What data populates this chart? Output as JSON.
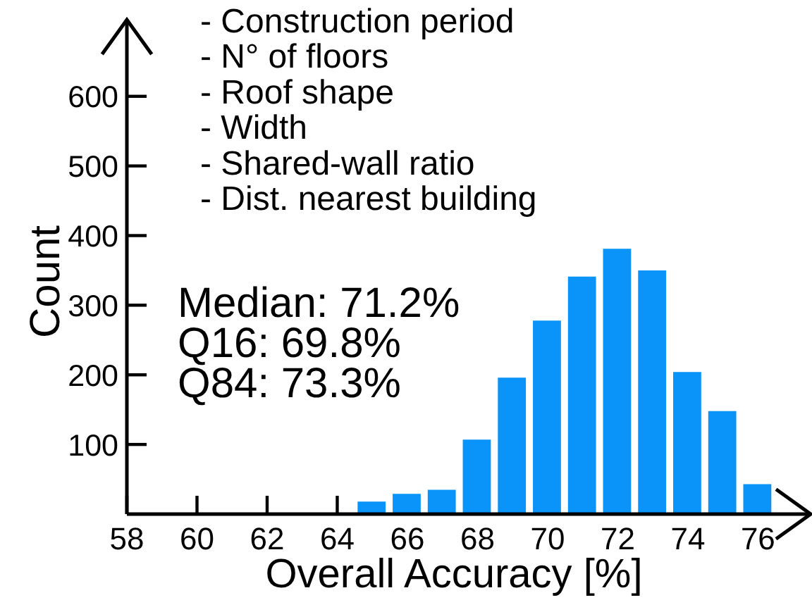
{
  "chart_data": {
    "type": "histogram",
    "xlabel": "Overall Accuracy [%]",
    "ylabel": "Count",
    "bins": [
      64.5,
      65.5,
      66.5,
      67.5,
      68.5,
      69.5,
      70.5,
      71.5,
      72.5,
      73.5,
      74.5,
      75.5,
      76.5
    ],
    "values": [
      18,
      29,
      35,
      107,
      196,
      278,
      341,
      381,
      350,
      204,
      148,
      43
    ],
    "color": "#0a93f8",
    "xlim": [
      58,
      77.5
    ],
    "xticks": [
      58,
      60,
      62,
      64,
      66,
      68,
      70,
      72,
      74,
      76
    ],
    "ylim": [
      0,
      710
    ],
    "yticks": [
      100,
      200,
      300,
      400,
      500,
      600
    ],
    "annotations": [
      "- Construction period\n- N° of floors\n- Roof shape\n- Width\n- Shared-wall ratio\n- Dist. nearest building",
      "Median: 71.2%\nQ16: 69.8%\nQ84: 73.3%"
    ]
  }
}
